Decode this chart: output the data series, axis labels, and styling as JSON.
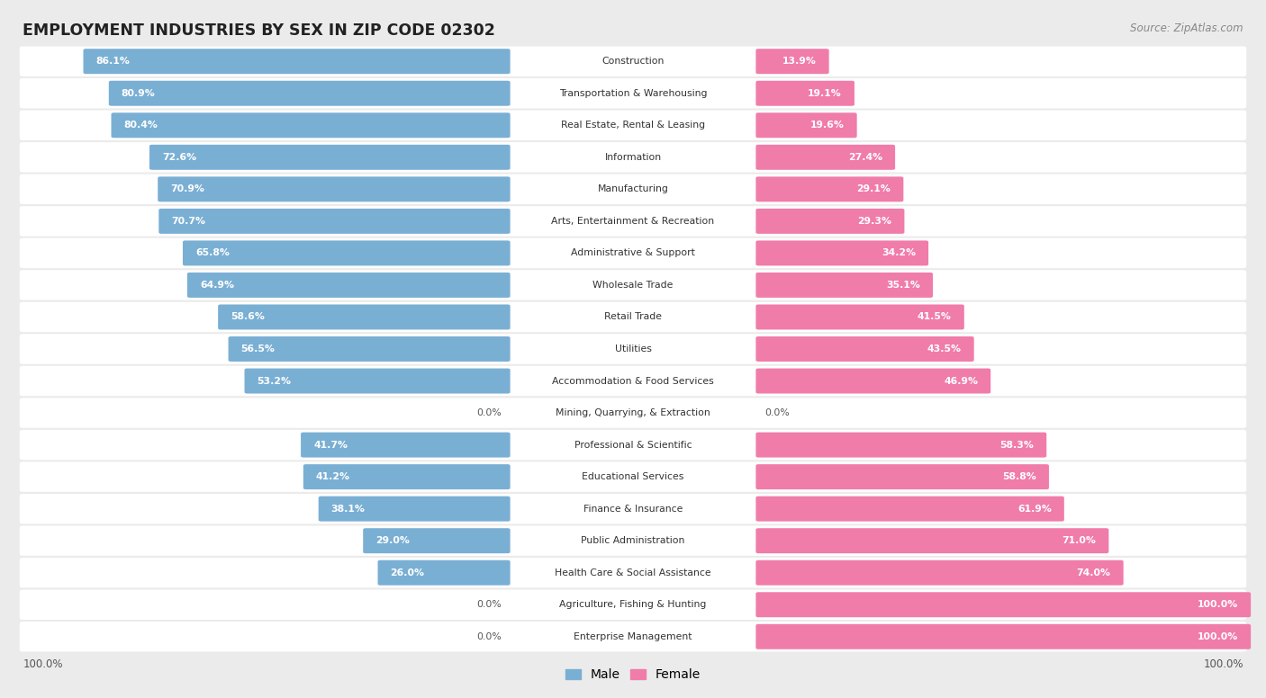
{
  "title": "EMPLOYMENT INDUSTRIES BY SEX IN ZIP CODE 02302",
  "source": "Source: ZipAtlas.com",
  "categories": [
    "Construction",
    "Transportation & Warehousing",
    "Real Estate, Rental & Leasing",
    "Information",
    "Manufacturing",
    "Arts, Entertainment & Recreation",
    "Administrative & Support",
    "Wholesale Trade",
    "Retail Trade",
    "Utilities",
    "Accommodation & Food Services",
    "Mining, Quarrying, & Extraction",
    "Professional & Scientific",
    "Educational Services",
    "Finance & Insurance",
    "Public Administration",
    "Health Care & Social Assistance",
    "Agriculture, Fishing & Hunting",
    "Enterprise Management"
  ],
  "male": [
    86.1,
    80.9,
    80.4,
    72.6,
    70.9,
    70.7,
    65.8,
    64.9,
    58.6,
    56.5,
    53.2,
    0.0,
    41.7,
    41.2,
    38.1,
    29.0,
    26.0,
    0.0,
    0.0
  ],
  "female": [
    13.9,
    19.1,
    19.6,
    27.4,
    29.1,
    29.3,
    34.2,
    35.1,
    41.5,
    43.5,
    46.9,
    0.0,
    58.3,
    58.8,
    61.9,
    71.0,
    74.0,
    100.0,
    100.0
  ],
  "male_color": "#7aafd4",
  "female_color": "#f07caa",
  "bg_color": "#ebebeb",
  "row_bg_color": "#ffffff",
  "title_color": "#222222",
  "pct_color_inside": "#ffffff",
  "pct_color_outside": "#555555",
  "source_color": "#888888"
}
